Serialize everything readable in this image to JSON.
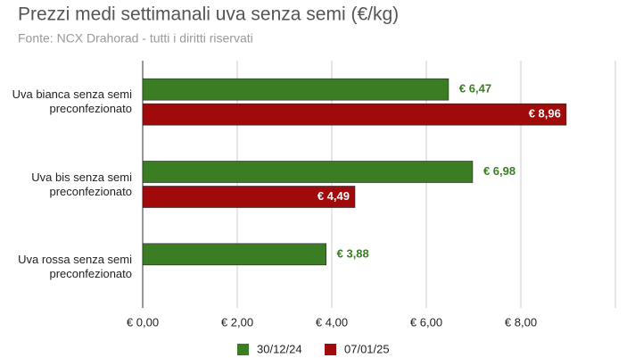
{
  "chart_data": {
    "type": "hbar",
    "title": "Prezzi medi settimanali uva senza semi (€/kg)",
    "subtitle": "Fonte: NCX Drahorad - tutti i diritti riservati",
    "categories": [
      "Uva bianca senza semi preconfezionato",
      "Uva bis senza semi preconfezionato",
      "Uva rossa senza semi preconfezionato"
    ],
    "series": [
      {
        "name": "30/12/24",
        "color": "#3b7d23",
        "values": [
          6.47,
          6.98,
          3.88
        ],
        "value_labels": [
          "€ 6,47",
          "€ 6,98",
          "€ 3,88"
        ]
      },
      {
        "name": "07/01/25",
        "color": "#a10a0a",
        "values": [
          8.96,
          4.49,
          null
        ],
        "value_labels": [
          "€ 8,96",
          "€ 4,49",
          null
        ]
      }
    ],
    "xlim": [
      0,
      10
    ],
    "xticks": [
      {
        "value": 0,
        "label": "€ 0,00"
      },
      {
        "value": 2,
        "label": "€ 2,00"
      },
      {
        "value": 4,
        "label": "€ 4,00"
      },
      {
        "value": 6,
        "label": "€ 6,00"
      },
      {
        "value": 8,
        "label": "€ 8,00"
      }
    ],
    "grid": true,
    "legend": "bottom"
  }
}
